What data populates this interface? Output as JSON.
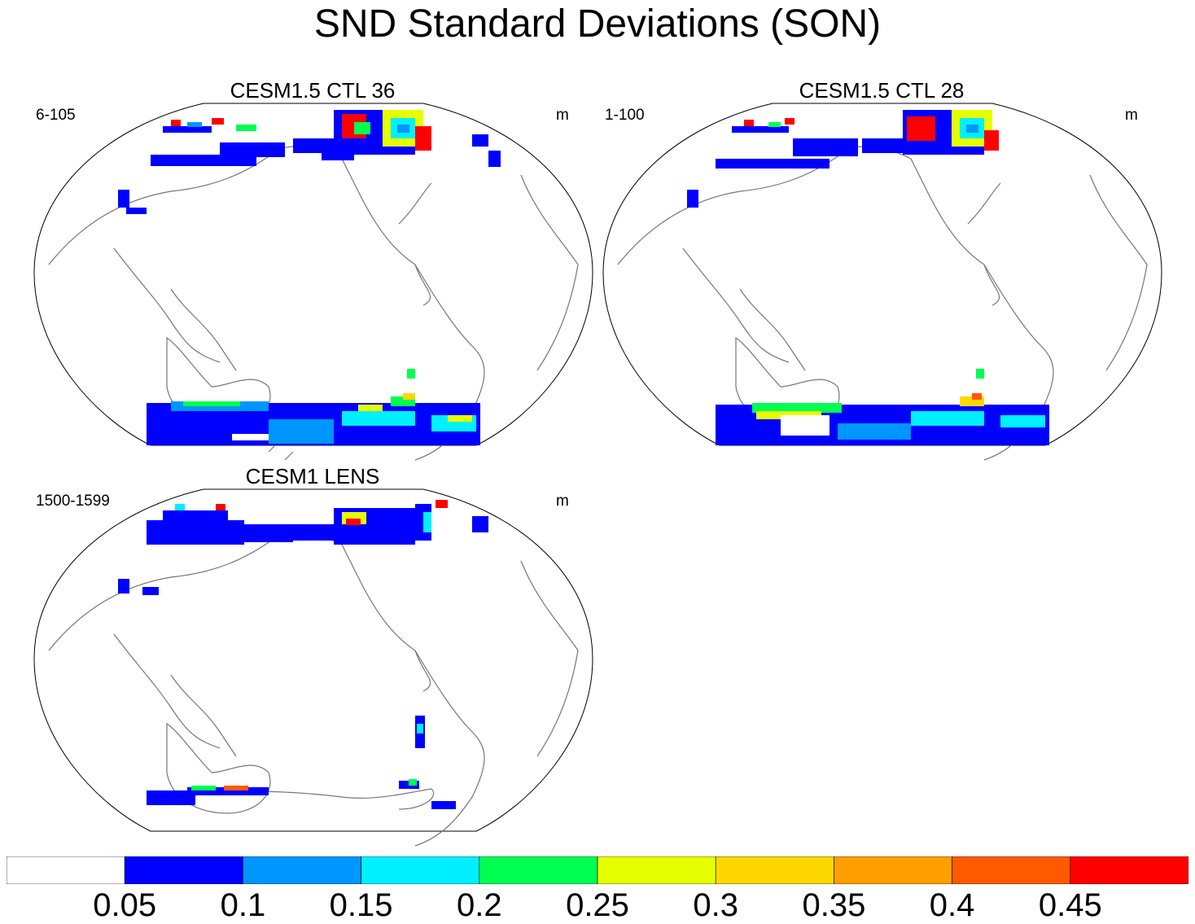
{
  "title": "SND Standard Deviations (SON)",
  "panels": [
    {
      "title": "CESM1.5 CTL 36",
      "years": "6-105",
      "units": "m"
    },
    {
      "title": "CESM1.5 CTL 28",
      "years": "1-100",
      "units": "m"
    },
    {
      "title": "CESM1 LENS",
      "years": "1500-1599",
      "units": "m"
    }
  ],
  "colorbar": {
    "labels": [
      "0.05",
      "0.1",
      "0.15",
      "0.2",
      "0.25",
      "0.3",
      "0.35",
      "0.4",
      "0.45"
    ],
    "colors": [
      "#ffffff",
      "#0000ff",
      "#0096ff",
      "#00f0ff",
      "#00ff50",
      "#e6ff00",
      "#ffd700",
      "#ff9f00",
      "#ff5a00",
      "#ff0000"
    ]
  },
  "colors": {
    "coastline": "#777777",
    "outline": "#000000",
    "antarctic": "#0000ff"
  }
}
